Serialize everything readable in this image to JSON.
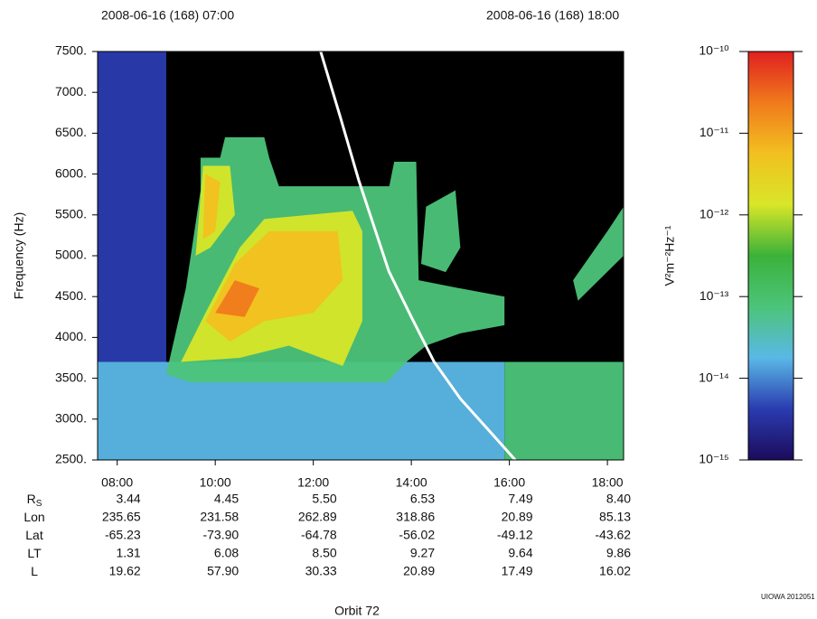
{
  "chart_data": {
    "type": "spectrogram",
    "header_left": "2008-06-16 (168) 07:00",
    "header_right": "2008-06-16 (168) 18:00",
    "ylabel": "Frequency (Hz)",
    "xlabel": "Orbit 72",
    "credit": "UIOWA 2012051",
    "xlim": [
      7.6,
      18.33
    ],
    "ylim": [
      2500,
      7500
    ],
    "xticks": [
      {
        "value": 8,
        "label": "08:00"
      },
      {
        "value": 10,
        "label": "10:00"
      },
      {
        "value": 12,
        "label": "12:00"
      },
      {
        "value": 14,
        "label": "14:00"
      },
      {
        "value": 16,
        "label": "16:00"
      },
      {
        "value": 18,
        "label": "18:00"
      }
    ],
    "yticks": [
      {
        "value": 7500,
        "label": "7500."
      },
      {
        "value": 7000,
        "label": "7000."
      },
      {
        "value": 6500,
        "label": "6500."
      },
      {
        "value": 6000,
        "label": "6000."
      },
      {
        "value": 5500,
        "label": "5500."
      },
      {
        "value": 5000,
        "label": "5000."
      },
      {
        "value": 4500,
        "label": "4500."
      },
      {
        "value": 4000,
        "label": "4000."
      },
      {
        "value": 3500,
        "label": "3500."
      },
      {
        "value": 3000,
        "label": "3000."
      },
      {
        "value": 2500,
        "label": "2500."
      }
    ],
    "colorbar": {
      "label": "V²m⁻²Hz⁻¹",
      "log": true,
      "clim": [
        1e-15,
        1e-10
      ],
      "colormap": [
        "#1c0b5c",
        "#2a3cb0",
        "#5ab8e6",
        "#4cc47a",
        "#3bb23a",
        "#d8e628",
        "#f2c020",
        "#f07a1c",
        "#e02020"
      ],
      "ticks": [
        {
          "value": 1e-10,
          "label": "10⁻¹⁰"
        },
        {
          "value": 1e-11,
          "label": "10⁻¹¹"
        },
        {
          "value": 1e-12,
          "label": "10⁻¹²"
        },
        {
          "value": 1e-13,
          "label": "10⁻¹³"
        },
        {
          "value": 1e-14,
          "label": "10⁻¹⁴"
        },
        {
          "value": 1e-15,
          "label": "10⁻¹⁵"
        }
      ]
    },
    "features": [
      {
        "x": [
          7.6,
          7.6,
          9.0,
          9.0
        ],
        "y": [
          3700,
          7500,
          7500,
          3700
        ],
        "level": 3e-15
      },
      {
        "x": [
          7.6,
          7.6,
          15.9,
          15.9
        ],
        "y": [
          2500,
          3700,
          3700,
          2500
        ],
        "level": 2e-14
      },
      {
        "x": [
          15.9,
          15.9,
          18.33,
          18.33
        ],
        "y": [
          2500,
          3700,
          3700,
          2500
        ],
        "level": 8e-14
      },
      {
        "x": [
          9.0,
          9.4,
          9.7,
          9.7,
          10.1,
          10.2,
          11.0,
          11.1,
          11.3,
          13.55,
          13.65,
          14.1,
          14.15,
          15.0,
          15.9,
          15.9,
          15.0,
          14.3,
          13.9,
          13.5,
          9.5
        ],
        "y": [
          3550,
          4600,
          5800,
          6200,
          6200,
          6450,
          6450,
          6200,
          5850,
          5850,
          6150,
          6150,
          4700,
          4600,
          4500,
          4150,
          4050,
          3900,
          3700,
          3450,
          3450
        ],
        "level": 1e-13
      },
      {
        "x": [
          14.2,
          14.3,
          14.9,
          15.0,
          14.7
        ],
        "y": [
          4900,
          5600,
          5800,
          5100,
          4800
        ],
        "level": 5e-14
      },
      {
        "x": [
          17.3,
          18.0,
          18.33,
          18.33,
          17.4
        ],
        "y": [
          4700,
          5300,
          5600,
          5000,
          4450
        ],
        "level": 4e-14
      },
      {
        "x": [
          9.3,
          9.8,
          10.5,
          11.0,
          12.8,
          13.0,
          13.0,
          12.6,
          11.5,
          10.5
        ],
        "y": [
          3700,
          4300,
          5100,
          5450,
          5550,
          5300,
          4200,
          3650,
          3900,
          3750
        ],
        "level": 1e-12
      },
      {
        "x": [
          9.6,
          9.75,
          10.3,
          10.4,
          9.9
        ],
        "y": [
          5000,
          6100,
          6100,
          5500,
          5100
        ],
        "level": 1e-12
      },
      {
        "x": [
          9.8,
          10.4,
          11.1,
          12.5,
          12.6,
          12.0,
          11.0,
          10.3
        ],
        "y": [
          4200,
          4900,
          5300,
          5300,
          4700,
          4300,
          4200,
          3950
        ],
        "level": 1e-11
      },
      {
        "x": [
          9.75,
          9.8,
          10.1,
          10.0
        ],
        "y": [
          5200,
          6000,
          5900,
          5300
        ],
        "level": 1e-11
      },
      {
        "x": [
          10.0,
          10.4,
          10.9,
          10.6
        ],
        "y": [
          4300,
          4700,
          4600,
          4250
        ],
        "level": 4e-11
      }
    ],
    "curve": {
      "color": "#ffffff",
      "x": [
        12.15,
        12.55,
        12.93,
        13.54,
        14.0,
        14.46,
        15.0,
        15.6,
        16.12
      ],
      "y": [
        7500,
        6700,
        5918,
        4812,
        4250,
        3706,
        3250,
        2850,
        2500
      ]
    },
    "ephemeris": [
      {
        "name": "R",
        "sub": "S",
        "values": [
          "3.44",
          "4.45",
          "5.50",
          "6.53",
          "7.49",
          "8.40"
        ]
      },
      {
        "name": "Lon",
        "values": [
          "235.65",
          "231.58",
          "262.89",
          "318.86",
          "20.89",
          "85.13"
        ]
      },
      {
        "name": "Lat",
        "values": [
          "-65.23",
          "-73.90",
          "-64.78",
          "-56.02",
          "-49.12",
          "-43.62"
        ]
      },
      {
        "name": "LT",
        "values": [
          "1.31",
          "6.08",
          "8.50",
          "9.27",
          "9.64",
          "9.86"
        ]
      },
      {
        "name": "L",
        "values": [
          "19.62",
          "57.90",
          "30.33",
          "20.89",
          "17.49",
          "16.02"
        ]
      }
    ]
  }
}
